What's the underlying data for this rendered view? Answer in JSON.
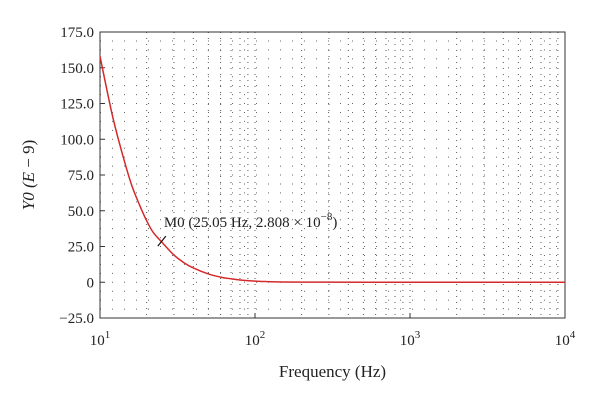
{
  "chart_data": {
    "type": "line",
    "xlabel": "Frequency (Hz)",
    "ylabel_main": "Y0 (",
    "ylabel_var": "E",
    "ylabel_rest": " − 9)",
    "x_scale": "log",
    "xlim": [
      10,
      10000
    ],
    "ylim": [
      -25,
      175
    ],
    "x_ticks": [
      {
        "value": 10,
        "base": "10",
        "exp": "1"
      },
      {
        "value": 100,
        "base": "10",
        "exp": "2"
      },
      {
        "value": 1000,
        "base": "10",
        "exp": "3"
      },
      {
        "value": 10000,
        "base": "10",
        "exp": "4"
      }
    ],
    "y_ticks": [
      "175.0",
      "150.0",
      "125.0",
      "100.0",
      "75.0",
      "50.0",
      "25.0",
      "0",
      "−25.0"
    ],
    "y_tick_values": [
      175,
      150,
      125,
      100,
      75,
      50,
      25,
      0,
      -25
    ],
    "grid": "dotted",
    "series": [
      {
        "color": "#d42a2a",
        "x": [
          10,
          12,
          14,
          16,
          18,
          20,
          22,
          25.05,
          30,
          35,
          40,
          50,
          60,
          70,
          80,
          100,
          120,
          150,
          200,
          300,
          500,
          1000,
          3000,
          10000
        ],
        "y": [
          158,
          117,
          89,
          68,
          54,
          43,
          35,
          28.08,
          19,
          13.5,
          10,
          5.8,
          3.6,
          2.4,
          1.6,
          0.8,
          0.45,
          0.2,
          0.1,
          0.05,
          0.02,
          0.01,
          0,
          0
        ]
      }
    ],
    "annotation": {
      "label_prefix": "M0 (25.05 Hz, 2.808 × 10",
      "label_exp": "−8",
      "label_suffix": ")",
      "x": 25.05,
      "y": 28.08
    }
  }
}
